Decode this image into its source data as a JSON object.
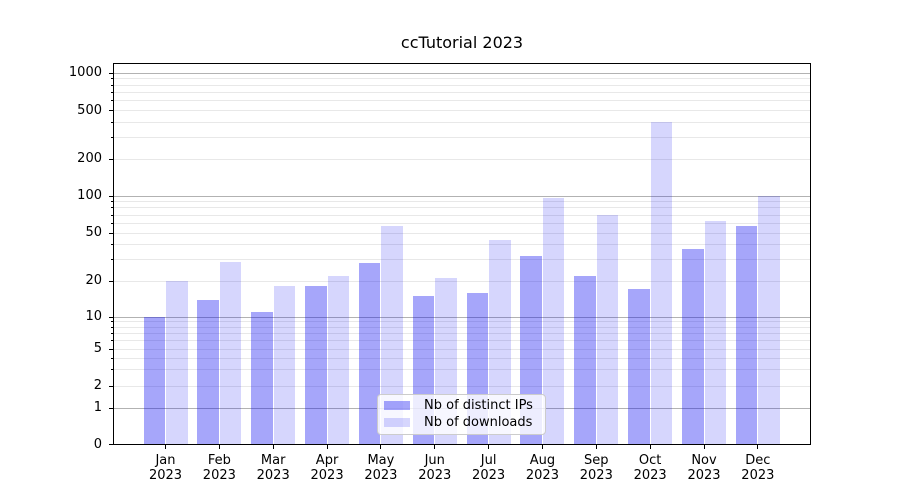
{
  "title": "ccTutorial 2023",
  "chart_data": {
    "type": "bar",
    "title": "ccTutorial 2023",
    "categories": [
      "Jan 2023",
      "Feb 2023",
      "Mar 2023",
      "Apr 2023",
      "May 2023",
      "Jun 2023",
      "Jul 2023",
      "Aug 2023",
      "Sep 2023",
      "Oct 2023",
      "Nov 2023",
      "Dec 2023"
    ],
    "x_tick_months": [
      "Jan",
      "Feb",
      "Mar",
      "Apr",
      "May",
      "Jun",
      "Jul",
      "Aug",
      "Sep",
      "Oct",
      "Nov",
      "Dec"
    ],
    "x_tick_year": "2023",
    "series": [
      {
        "name": "Nb of distinct IPs",
        "color": "rgba(0,0,240,0.35)",
        "values": [
          10,
          14,
          11,
          18,
          28,
          15,
          16,
          32,
          22,
          17,
          37,
          57
        ]
      },
      {
        "name": "Nb of downloads",
        "color": "rgba(0,0,240,0.16)",
        "values": [
          20,
          29,
          18,
          22,
          57,
          21,
          44,
          97,
          70,
          400,
          63,
          100
        ]
      }
    ],
    "xlabel": "",
    "ylabel": "",
    "ylim": [
      0,
      1000
    ],
    "y_scale": "symlog",
    "y_tick_values": [
      0,
      1,
      2,
      5,
      10,
      20,
      50,
      100,
      200,
      500,
      1000
    ],
    "y_tick_labels": [
      "0",
      "1",
      "2",
      "5",
      "10",
      "20",
      "50",
      "100",
      "200",
      "500",
      "1000"
    ],
    "grid": {
      "visible": true,
      "major_color": "#b2b2b2",
      "minor_color": "#e8e8e8"
    },
    "legend": {
      "location": "lower center",
      "entries": [
        "Nb of distinct IPs",
        "Nb of downloads"
      ]
    }
  },
  "colors": {
    "background": "#ffffff",
    "axis": "#000000",
    "bar_distinct_ips": "rgba(0,0,240,0.35)",
    "bar_downloads": "rgba(0,0,240,0.16)"
  }
}
